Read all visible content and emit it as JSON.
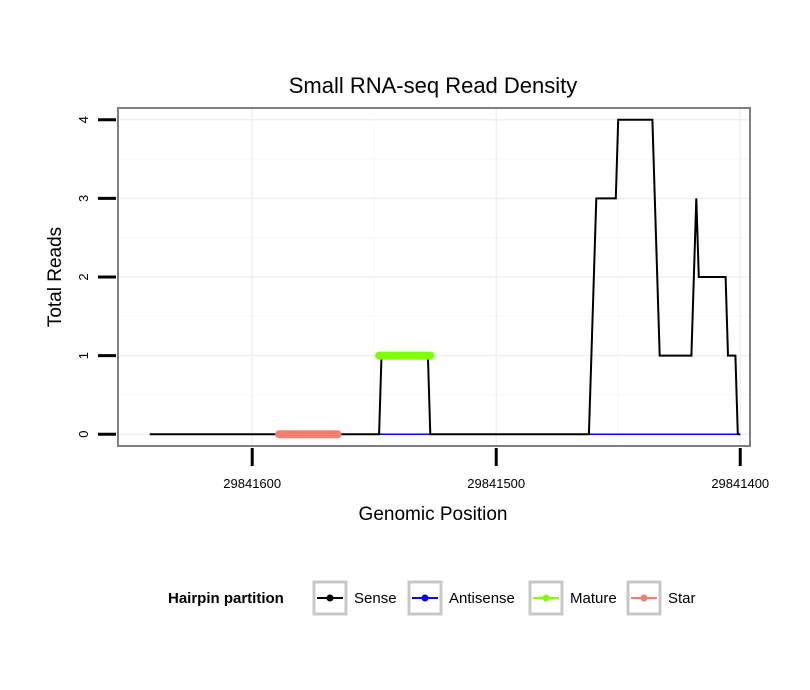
{
  "chart_data": {
    "type": "line",
    "title": "Small RNA-seq Read Density",
    "xlabel": "Genomic Position",
    "ylabel": "Total Reads",
    "x_reversed": true,
    "xlim": [
      29841655,
      29841396
    ],
    "ylim": [
      -0.15,
      4.15
    ],
    "x_ticks": [
      29841600,
      29841500,
      29841400
    ],
    "x_tick_labels": [
      "29841600",
      "29841500",
      "29841400"
    ],
    "y_ticks": [
      0,
      1,
      2,
      3,
      4
    ],
    "y_tick_labels": [
      "0",
      "1",
      "2",
      "3",
      "4"
    ],
    "grid": true,
    "legend": {
      "title": "Hairpin partition",
      "position": "bottom",
      "entries": [
        {
          "label": "Sense",
          "color": "#000000"
        },
        {
          "label": "Antisense",
          "color": "#0000ff"
        },
        {
          "label": "Mature",
          "color": "#7fff00"
        },
        {
          "label": "Star",
          "color": "#f08070"
        }
      ]
    },
    "series": [
      {
        "name": "Sense",
        "color": "#000000",
        "x": [
          29841642,
          29841548,
          29841547,
          29841528,
          29841527,
          29841462,
          29841461,
          29841459,
          29841451,
          29841450,
          29841445,
          29841443,
          29841436,
          29841435,
          29841433,
          29841431,
          29841430,
          29841420,
          29841418,
          29841417,
          29841416,
          29841415,
          29841406,
          29841405,
          29841404,
          29841402,
          29841401,
          29841400
        ],
        "y": [
          0,
          0,
          1,
          1,
          0,
          0,
          1,
          3,
          3,
          4,
          4,
          4,
          4,
          3,
          1,
          1,
          1,
          1,
          3,
          2,
          2,
          2,
          2,
          1,
          1,
          1,
          0,
          0
        ]
      },
      {
        "name": "Antisense",
        "color": "#0000ff",
        "x": [
          29841548,
          29841527,
          29841462,
          29841400
        ],
        "y": [
          0,
          0,
          0,
          0
        ]
      },
      {
        "name": "Mature",
        "color": "#7fff00",
        "x": [
          29841548,
          29841527
        ],
        "y": [
          1,
          1
        ]
      },
      {
        "name": "Star",
        "color": "#f08070",
        "x": [
          29841589,
          29841565
        ],
        "y": [
          0,
          0
        ]
      }
    ]
  }
}
